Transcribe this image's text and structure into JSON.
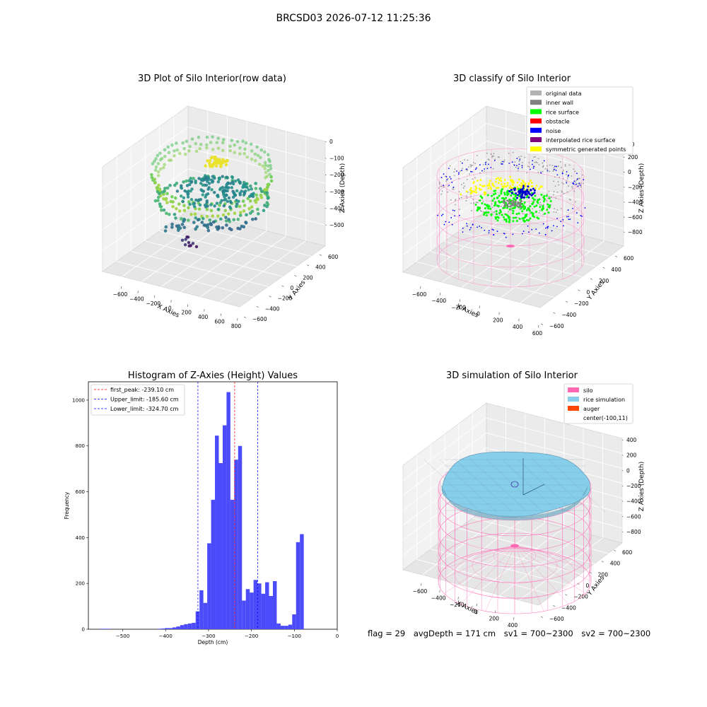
{
  "figure_title": "BRCSD03 2026-07-12 11:25:36",
  "footer": {
    "flag": "flag = 29",
    "avg_depth": "avgDepth = 171 cm",
    "sv1": "sv1 = 700~2300",
    "sv2": "sv2 = 700~2300"
  },
  "chart_data": [
    {
      "type": "scatter",
      "title": "3D Plot of Silo Interior(row data)",
      "xlabel": "X Axies",
      "ylabel": "Y Axies",
      "zlabel": "Z Axies (Depth)",
      "x_ticks": [
        "−600",
        "−400",
        "−200",
        "0",
        "200",
        "400",
        "600",
        "800"
      ],
      "y_ticks": [
        "−600",
        "−400",
        "−200",
        "0",
        "200",
        "400",
        "600"
      ],
      "z_ticks": [
        "0",
        "−100",
        "−200",
        "−300",
        "−400",
        "−500"
      ],
      "colormap": "viridis"
    },
    {
      "type": "scatter",
      "title": "3D classify of Silo Interior",
      "xlabel": "X Axies",
      "ylabel": "Y Axies",
      "zlabel": "Z Axies (Depth)",
      "x_ticks": [
        "−600",
        "−400",
        "−200",
        "0",
        "200",
        "400",
        "600"
      ],
      "y_ticks": [
        "−600",
        "−400",
        "−200",
        "0",
        "200",
        "400",
        "600"
      ],
      "z_ticks": [
        "200",
        "0",
        "−200",
        "−400",
        "−600",
        "−800"
      ],
      "z_partial_top": "00",
      "legend": [
        {
          "label": "original data",
          "color": "#b3b3b3"
        },
        {
          "label": "inner wall",
          "color": "#808080"
        },
        {
          "label": "rice surface",
          "color": "#00ff00"
        },
        {
          "label": "obstacle",
          "color": "#ff0000"
        },
        {
          "label": "noise",
          "color": "#0000ff"
        },
        {
          "label": "interpolated rice surface",
          "color": "#800080"
        },
        {
          "label": "symmetric generated points",
          "color": "#ffff00"
        }
      ],
      "legend_placement": "upper right"
    },
    {
      "type": "bar",
      "title": "Histogram of Z-Axies (Height) Values",
      "xlabel": "Depth (cm)",
      "ylabel": "Frequency",
      "xlim": [
        -580,
        0
      ],
      "ylim": [
        0,
        1080
      ],
      "x_ticks": [
        -500,
        -400,
        -300,
        -200,
        -100,
        0
      ],
      "x_tick_labels": [
        "−500",
        "−400",
        "−300",
        "−200",
        "−100",
        "0"
      ],
      "y_ticks": [
        0,
        200,
        400,
        600,
        800,
        1000
      ],
      "bin_width": 9,
      "bins": [
        [
          -555,
          -546,
          2
        ],
        [
          -546,
          -537,
          2
        ],
        [
          -537,
          -528,
          2
        ],
        [
          -420,
          -411,
          2
        ],
        [
          -411,
          -402,
          3
        ],
        [
          -402,
          -393,
          5
        ],
        [
          -393,
          -384,
          5
        ],
        [
          -384,
          -375,
          8
        ],
        [
          -375,
          -366,
          12
        ],
        [
          -366,
          -357,
          18
        ],
        [
          -357,
          -348,
          22
        ],
        [
          -348,
          -339,
          25
        ],
        [
          -339,
          -330,
          28
        ],
        [
          -330,
          -321,
          78
        ],
        [
          -321,
          -312,
          170
        ],
        [
          -312,
          -303,
          115
        ],
        [
          -303,
          -294,
          375
        ],
        [
          -294,
          -285,
          565
        ],
        [
          -285,
          -276,
          845
        ],
        [
          -276,
          -267,
          725
        ],
        [
          -267,
          -258,
          890
        ],
        [
          -258,
          -249,
          1035
        ],
        [
          -249,
          -240,
          565
        ],
        [
          -240,
          -231,
          740
        ],
        [
          -231,
          -222,
          800
        ],
        [
          -222,
          -213,
          125
        ],
        [
          -213,
          -204,
          175
        ],
        [
          -204,
          -195,
          160
        ],
        [
          -195,
          -186,
          215
        ],
        [
          -186,
          -177,
          200
        ],
        [
          -177,
          -168,
          155
        ],
        [
          -168,
          -159,
          205
        ],
        [
          -159,
          -150,
          145
        ],
        [
          -150,
          -141,
          210
        ],
        [
          -141,
          -132,
          25
        ],
        [
          -132,
          -123,
          15
        ],
        [
          -123,
          -114,
          15
        ],
        [
          -114,
          -105,
          20
        ],
        [
          -105,
          -96,
          65
        ],
        [
          -96,
          -87,
          380
        ],
        [
          -87,
          -78,
          415
        ]
      ],
      "bar_color": "#4b4bfa",
      "vlines": [
        {
          "x": -239.1,
          "color": "#ff0000",
          "label": "first_peak: -239.10 cm"
        },
        {
          "x": -185.6,
          "color": "#0000ff",
          "label": "Upper_limit: -185.60 cm"
        },
        {
          "x": -324.7,
          "color": "#0000ff",
          "label": "Lower_limit: -324.70 cm"
        }
      ],
      "legend_placement": "upper left"
    },
    {
      "type": "surface",
      "title": "3D simulation of Silo Interior",
      "xlabel": "X Axies",
      "ylabel": "Y Axies",
      "zlabel": "Z Axies (Depth)",
      "x_ticks": [
        "−600",
        "−400",
        "−200",
        "0",
        "200",
        "400"
      ],
      "y_ticks": [
        "−600",
        "−400",
        "−200",
        "0",
        "200",
        "400",
        "600"
      ],
      "z_ticks": [
        "400",
        "200",
        "0",
        "−200",
        "−400",
        "−600",
        "−800"
      ],
      "legend": [
        {
          "label": "silo",
          "color": "#ff69b4"
        },
        {
          "label": "rice simulation",
          "color": "#87ceeb"
        },
        {
          "label": "auger",
          "color": "#ff4500"
        },
        {
          "label": "center(-100,11)",
          "color": ""
        }
      ],
      "legend_placement": "upper right"
    }
  ]
}
